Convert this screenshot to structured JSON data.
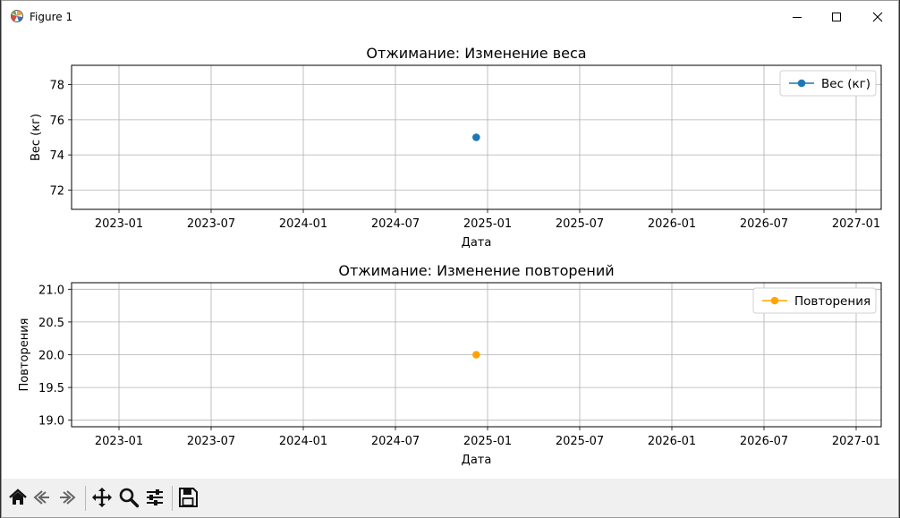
{
  "window": {
    "title": "Figure 1"
  },
  "toolbar": {
    "buttons": [
      "home-icon",
      "back-icon",
      "forward-icon",
      "pan-icon",
      "zoom-icon",
      "configure-subplots-icon",
      "save-icon"
    ]
  },
  "colors": {
    "weight_series": "#1f77b4",
    "reps_series": "#ffa500",
    "grid": "#b0b0b0"
  },
  "chart_data": [
    {
      "type": "line",
      "title": "Отжимание: Изменение веса",
      "xlabel": "Дата",
      "ylabel": "Вес (кг)",
      "x_ticks": [
        "2023-01",
        "2023-07",
        "2024-01",
        "2024-07",
        "2025-01",
        "2025-07",
        "2026-01",
        "2026-07",
        "2027-01"
      ],
      "y_ticks": [
        "72",
        "74",
        "76",
        "78"
      ],
      "ylim": [
        70.9,
        79.1
      ],
      "grid": true,
      "legend": "top-right",
      "series": [
        {
          "name": "Вес (кг)",
          "color": "#1f77b4",
          "marker": "circle",
          "points": [
            {
              "x": "2024-12-09",
              "y": 75
            }
          ]
        }
      ]
    },
    {
      "type": "line",
      "title": "Отжимание: Изменение повторений",
      "xlabel": "Дата",
      "ylabel": "Повторения",
      "x_ticks": [
        "2023-01",
        "2023-07",
        "2024-01",
        "2024-07",
        "2025-01",
        "2025-07",
        "2026-01",
        "2026-07",
        "2027-01"
      ],
      "y_ticks": [
        "19.0",
        "19.5",
        "20.0",
        "20.5",
        "21.0"
      ],
      "ylim": [
        18.9,
        21.1
      ],
      "grid": true,
      "legend": "top-right",
      "series": [
        {
          "name": "Повторения",
          "color": "#ffa500",
          "marker": "circle",
          "points": [
            {
              "x": "2024-12-09",
              "y": 20
            }
          ]
        }
      ]
    }
  ]
}
